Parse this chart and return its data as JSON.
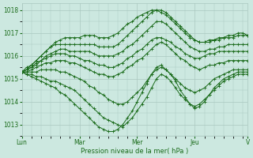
{
  "bg_color": "#cce8e0",
  "grid_color": "#aac8c0",
  "line_color": "#1a6b1a",
  "xlabel": "Pression niveau de la mer( hPa )",
  "xtick_labels": [
    "Lun",
    "Mar",
    "Mer",
    "Jeu",
    "V"
  ],
  "ylim": [
    1012.5,
    1018.3
  ],
  "yticks": [
    1013,
    1014,
    1015,
    1016,
    1017,
    1018
  ],
  "n_steps": 48,
  "day_positions": [
    0,
    12,
    24,
    36,
    47
  ],
  "lines": [
    [
      1015.3,
      1015.4,
      1015.5,
      1015.6,
      1015.8,
      1015.9,
      1016.0,
      1016.1,
      1016.1,
      1016.1,
      1016.0,
      1016.0,
      1015.9,
      1015.8,
      1015.8,
      1015.7,
      1015.6,
      1015.6,
      1015.5,
      1015.5,
      1015.6,
      1015.7,
      1015.9,
      1016.0,
      1016.2,
      1016.3,
      1016.5,
      1016.7,
      1016.8,
      1016.8,
      1016.7,
      1016.6,
      1016.4,
      1016.3,
      1016.1,
      1016.0,
      1015.9,
      1015.9,
      1016.0,
      1016.1,
      1016.1,
      1016.2,
      1016.2,
      1016.2,
      1016.2,
      1016.2,
      1016.2,
      1016.2
    ],
    [
      1015.3,
      1015.4,
      1015.5,
      1015.7,
      1015.8,
      1016.0,
      1016.1,
      1016.2,
      1016.3,
      1016.3,
      1016.2,
      1016.2,
      1016.2,
      1016.2,
      1016.2,
      1016.1,
      1016.0,
      1016.0,
      1016.0,
      1016.0,
      1016.1,
      1016.2,
      1016.4,
      1016.5,
      1016.7,
      1016.9,
      1017.1,
      1017.3,
      1017.5,
      1017.5,
      1017.4,
      1017.2,
      1017.0,
      1016.8,
      1016.6,
      1016.4,
      1016.3,
      1016.2,
      1016.2,
      1016.3,
      1016.3,
      1016.4,
      1016.4,
      1016.5,
      1016.5,
      1016.5,
      1016.5,
      1016.5
    ],
    [
      1015.3,
      1015.5,
      1015.6,
      1015.8,
      1016.0,
      1016.2,
      1016.4,
      1016.5,
      1016.5,
      1016.5,
      1016.5,
      1016.5,
      1016.5,
      1016.5,
      1016.5,
      1016.5,
      1016.4,
      1016.4,
      1016.4,
      1016.4,
      1016.5,
      1016.7,
      1016.9,
      1017.1,
      1017.3,
      1017.5,
      1017.7,
      1017.9,
      1018.0,
      1018.0,
      1017.9,
      1017.7,
      1017.5,
      1017.3,
      1017.1,
      1016.9,
      1016.7,
      1016.6,
      1016.6,
      1016.6,
      1016.7,
      1016.7,
      1016.8,
      1016.8,
      1016.8,
      1016.9,
      1016.9,
      1016.9
    ],
    [
      1015.3,
      1015.3,
      1015.4,
      1015.5,
      1015.6,
      1015.7,
      1015.7,
      1015.8,
      1015.8,
      1015.8,
      1015.7,
      1015.7,
      1015.6,
      1015.5,
      1015.4,
      1015.3,
      1015.2,
      1015.2,
      1015.1,
      1015.1,
      1015.2,
      1015.3,
      1015.5,
      1015.6,
      1015.8,
      1015.9,
      1016.1,
      1016.3,
      1016.5,
      1016.6,
      1016.5,
      1016.3,
      1016.1,
      1015.9,
      1015.8,
      1015.6,
      1015.5,
      1015.4,
      1015.5,
      1015.6,
      1015.6,
      1015.7,
      1015.7,
      1015.8,
      1015.8,
      1015.8,
      1015.8,
      1015.8
    ],
    [
      1015.3,
      1015.3,
      1015.3,
      1015.3,
      1015.4,
      1015.4,
      1015.4,
      1015.4,
      1015.3,
      1015.3,
      1015.2,
      1015.1,
      1015.0,
      1014.9,
      1014.7,
      1014.6,
      1014.4,
      1014.3,
      1014.1,
      1014.0,
      1013.9,
      1013.9,
      1014.0,
      1014.2,
      1014.4,
      1014.6,
      1014.9,
      1015.2,
      1015.4,
      1015.5,
      1015.4,
      1015.2,
      1015.0,
      1014.8,
      1014.6,
      1014.5,
      1014.4,
      1014.5,
      1014.6,
      1014.8,
      1015.0,
      1015.1,
      1015.2,
      1015.3,
      1015.4,
      1015.4,
      1015.4,
      1015.4
    ],
    [
      1015.3,
      1015.2,
      1015.2,
      1015.1,
      1015.1,
      1015.0,
      1014.9,
      1014.9,
      1014.8,
      1014.7,
      1014.6,
      1014.5,
      1014.3,
      1014.1,
      1013.9,
      1013.7,
      1013.5,
      1013.3,
      1013.2,
      1013.1,
      1013.0,
      1012.9,
      1013.1,
      1013.3,
      1013.6,
      1013.9,
      1014.2,
      1014.6,
      1015.0,
      1015.2,
      1015.1,
      1014.9,
      1014.6,
      1014.3,
      1014.1,
      1013.9,
      1013.8,
      1013.9,
      1014.1,
      1014.3,
      1014.5,
      1014.7,
      1014.9,
      1015.0,
      1015.1,
      1015.2,
      1015.2,
      1015.2
    ],
    [
      1015.3,
      1015.2,
      1015.1,
      1015.0,
      1014.9,
      1014.8,
      1014.7,
      1014.6,
      1014.4,
      1014.3,
      1014.1,
      1013.9,
      1013.7,
      1013.5,
      1013.3,
      1013.1,
      1012.9,
      1012.8,
      1012.7,
      1012.7,
      1012.8,
      1013.0,
      1013.3,
      1013.6,
      1014.0,
      1014.4,
      1014.8,
      1015.2,
      1015.5,
      1015.6,
      1015.4,
      1015.2,
      1014.9,
      1014.5,
      1014.2,
      1013.9,
      1013.7,
      1013.8,
      1014.0,
      1014.3,
      1014.6,
      1014.8,
      1015.0,
      1015.1,
      1015.2,
      1015.3,
      1015.3,
      1015.3
    ],
    [
      1015.3,
      1015.4,
      1015.6,
      1015.8,
      1016.0,
      1016.2,
      1016.4,
      1016.6,
      1016.7,
      1016.8,
      1016.8,
      1016.8,
      1016.8,
      1016.9,
      1016.9,
      1016.9,
      1016.8,
      1016.8,
      1016.8,
      1016.9,
      1017.0,
      1017.2,
      1017.4,
      1017.5,
      1017.7,
      1017.8,
      1017.9,
      1018.0,
      1018.0,
      1017.9,
      1017.8,
      1017.6,
      1017.4,
      1017.2,
      1017.0,
      1016.8,
      1016.7,
      1016.6,
      1016.6,
      1016.7,
      1016.7,
      1016.8,
      1016.8,
      1016.9,
      1016.9,
      1017.0,
      1017.0,
      1016.9
    ]
  ]
}
